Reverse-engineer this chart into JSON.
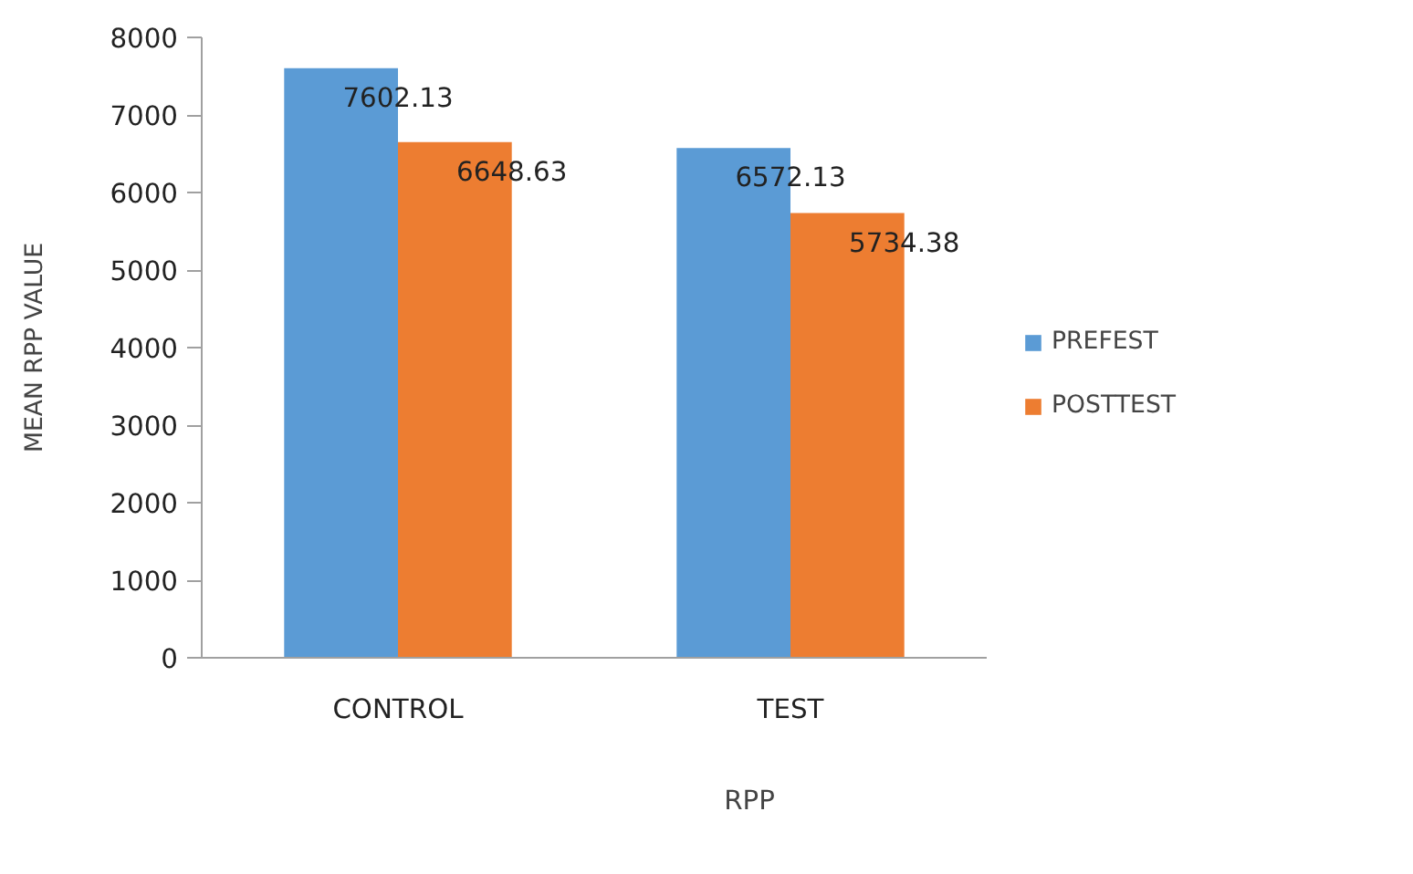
{
  "chart_data": {
    "type": "bar",
    "xlabel": "RPP",
    "ylabel": "MEAN RPP VALUE",
    "categories": [
      "CONTROL",
      "TEST"
    ],
    "series": [
      {
        "name": "PREFEST",
        "color": "#5b9bd5",
        "values": [
          7602.13,
          6572.13
        ]
      },
      {
        "name": "POSTTEST",
        "color": "#ed7d31",
        "values": [
          6648.63,
          5734.38
        ]
      }
    ],
    "ylim": [
      0,
      8000
    ],
    "yticks": [
      0,
      1000,
      2000,
      3000,
      4000,
      5000,
      6000,
      7000,
      8000
    ],
    "data_labels": true,
    "grid": false,
    "legend": "right"
  }
}
